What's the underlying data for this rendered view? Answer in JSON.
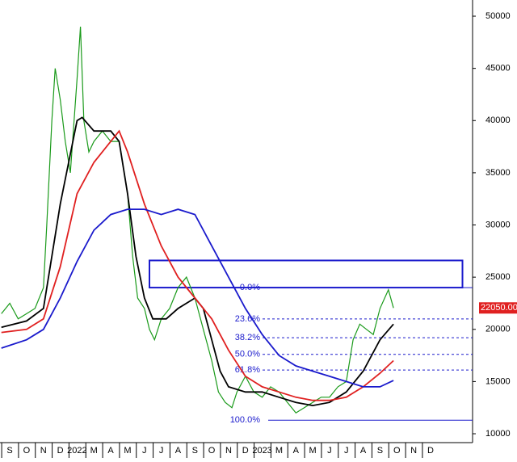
{
  "chart_data": {
    "type": "line",
    "xlim": [
      -0.58,
      27.5
    ],
    "ylim": [
      9150,
      51550
    ],
    "xticks": [
      {
        "value": 0,
        "label": "S"
      },
      {
        "value": 1,
        "label": "O"
      },
      {
        "value": 2,
        "label": "N"
      },
      {
        "value": 3,
        "label": "D"
      },
      {
        "value": 4,
        "label": "2022"
      },
      {
        "value": 5,
        "label": "M"
      },
      {
        "value": 6,
        "label": "A"
      },
      {
        "value": 7,
        "label": "M"
      },
      {
        "value": 8,
        "label": "J"
      },
      {
        "value": 9,
        "label": "J"
      },
      {
        "value": 10,
        "label": "A"
      },
      {
        "value": 11,
        "label": "S"
      },
      {
        "value": 12,
        "label": "O"
      },
      {
        "value": 13,
        "label": "N"
      },
      {
        "value": 14,
        "label": "D"
      },
      {
        "value": 15,
        "label": "2023"
      },
      {
        "value": 16,
        "label": "M"
      },
      {
        "value": 17,
        "label": "A"
      },
      {
        "value": 18,
        "label": "M"
      },
      {
        "value": 19,
        "label": "J"
      },
      {
        "value": 20,
        "label": "J"
      },
      {
        "value": 21,
        "label": "A"
      },
      {
        "value": 22,
        "label": "S"
      },
      {
        "value": 23,
        "label": "O"
      },
      {
        "value": 24,
        "label": "N"
      },
      {
        "value": 25,
        "label": "D"
      }
    ],
    "yticks": [
      10000,
      15000,
      20000,
      25000,
      30000,
      35000,
      40000,
      45000,
      50000
    ],
    "series": [
      {
        "color": "#1a9a1a",
        "x": [
          -0.5,
          0,
          0.5,
          1,
          1.5,
          2,
          2.2,
          2.5,
          2.7,
          3,
          3.3,
          3.6,
          4,
          4.2,
          4.4,
          4.7,
          5,
          5.5,
          6,
          6.5,
          7,
          7.3,
          7.6,
          8,
          8.3,
          8.6,
          9,
          9.5,
          10,
          10.5,
          11,
          11.5,
          12,
          12.4,
          12.8,
          13.2,
          13.5,
          14,
          14.5,
          15,
          15.5,
          16,
          16.5,
          17,
          17.5,
          18,
          18.5,
          19,
          19.5,
          20,
          20.4,
          20.8,
          21.2,
          21.6,
          22,
          22.5,
          22.8
        ],
        "values": [
          21500,
          22500,
          21000,
          21500,
          22000,
          24000,
          30000,
          40000,
          45000,
          42000,
          38000,
          35000,
          44000,
          49000,
          40000,
          37000,
          38000,
          39000,
          38000,
          38000,
          33000,
          27000,
          23000,
          22000,
          20000,
          19000,
          21000,
          22000,
          24000,
          25000,
          23000,
          20000,
          17000,
          14000,
          13000,
          12500,
          14000,
          15500,
          14000,
          13500,
          14500,
          14000,
          13000,
          12000,
          12500,
          13000,
          13500,
          13500,
          14500,
          15000,
          19000,
          20500,
          20000,
          19500,
          22000,
          23800,
          22050
        ]
      },
      {
        "color": "#000000",
        "x": [
          -0.5,
          1,
          2,
          2.5,
          3,
          3.5,
          4,
          4.3,
          5,
          6,
          6.5,
          7,
          7.5,
          8,
          8.5,
          9.3,
          10,
          11,
          11.5,
          12,
          12.5,
          13,
          14,
          15,
          16,
          17,
          18,
          19,
          20,
          21,
          22,
          22.8
        ],
        "values": [
          20200,
          20800,
          22000,
          27000,
          32000,
          36000,
          40000,
          40300,
          39000,
          39000,
          38000,
          33000,
          27000,
          23000,
          21000,
          21000,
          22000,
          23000,
          22000,
          19000,
          16000,
          14500,
          14000,
          14000,
          13500,
          13000,
          12700,
          13000,
          14000,
          16000,
          19000,
          20500
        ]
      },
      {
        "color": "#e02020",
        "x": [
          -0.5,
          1,
          2,
          3,
          4,
          5,
          6,
          6.5,
          7,
          8,
          9,
          10,
          11,
          12,
          13,
          14,
          15,
          16,
          17,
          18,
          19,
          20,
          21,
          22,
          22.8
        ],
        "values": [
          19700,
          20000,
          21000,
          26000,
          33000,
          36000,
          38000,
          39000,
          37000,
          32000,
          28000,
          25000,
          23000,
          21000,
          18000,
          15500,
          14500,
          14000,
          13500,
          13200,
          13200,
          13500,
          14500,
          15800,
          17000
        ]
      },
      {
        "color": "#1a1acc",
        "x": [
          -0.5,
          1,
          2,
          3,
          4,
          5,
          6,
          7,
          8,
          9,
          10,
          11,
          12,
          13,
          14,
          15,
          16,
          17,
          18,
          19,
          20,
          21,
          22,
          22.8
        ],
        "values": [
          18200,
          19000,
          20000,
          23000,
          26500,
          29500,
          31000,
          31500,
          31500,
          31000,
          31500,
          31000,
          28000,
          25000,
          22000,
          19500,
          17500,
          16500,
          16000,
          15500,
          15000,
          14500,
          14500,
          15100
        ]
      }
    ],
    "fib_levels": {
      "labels": [
        "0.0%",
        "23.6%",
        "38.2%",
        "50.0%",
        "61.8%",
        "100.0%"
      ],
      "values": [
        24000,
        21000,
        19200,
        17600,
        16100,
        11300
      ],
      "color": "#1a1acc"
    },
    "zone": {
      "x": [
        8.3,
        26.9
      ],
      "y": [
        24000,
        26600
      ],
      "color": "#1a1acc"
    },
    "last_label": "22050.00",
    "last_value": 22050,
    "last_color": "#e02020"
  }
}
